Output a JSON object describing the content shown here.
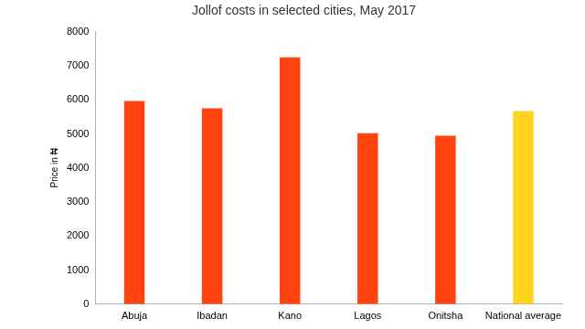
{
  "chart_data": {
    "type": "bar",
    "title": "Jollof costs in selected cities, May 2017",
    "y_label": "Price in ₦",
    "categories": [
      "Abuja",
      "Ibadan",
      "Kano",
      "Lagos",
      "Onitsha",
      "National average"
    ],
    "values": [
      5970,
      5750,
      7250,
      5020,
      4950,
      5670
    ],
    "colors": [
      "#ff420e",
      "#ff420e",
      "#ff420e",
      "#ff420e",
      "#ff420e",
      "#ffd320"
    ],
    "ylim": [
      0,
      8000
    ],
    "yticks": [
      0,
      1000,
      2000,
      3000,
      4000,
      5000,
      6000,
      7000,
      8000
    ],
    "grid": false
  }
}
